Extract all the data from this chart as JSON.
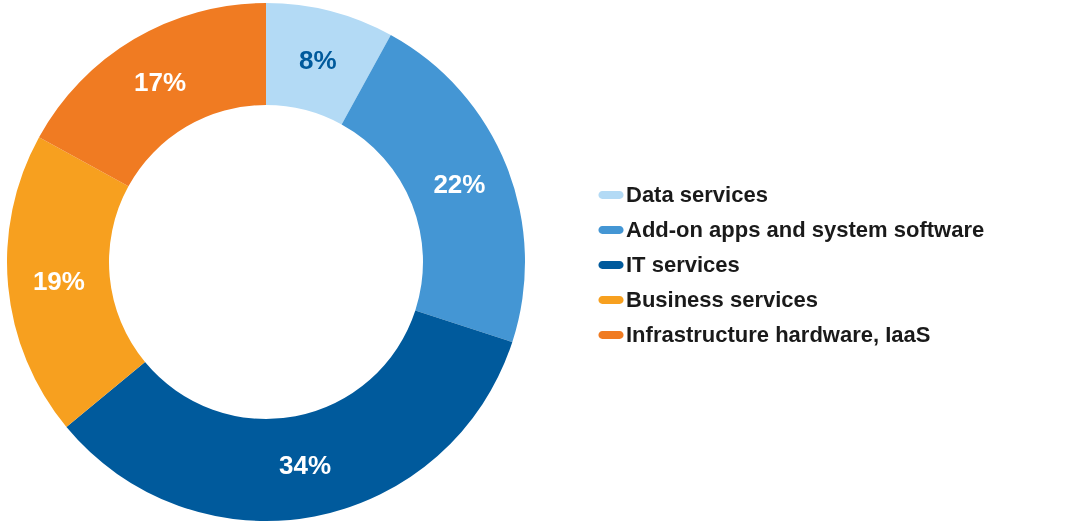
{
  "chart_data": {
    "type": "donut",
    "categories": [
      "Data services",
      "Add-on apps and system software",
      "IT services",
      "Business services",
      "Infrastructure hardware, IaaS"
    ],
    "values": [
      8,
      22,
      34,
      19,
      17
    ],
    "colors": [
      "#b3daf5",
      "#4496d4",
      "#005a9c",
      "#f7a01f",
      "#f07b22"
    ],
    "value_labels": [
      "8%",
      "22%",
      "34%",
      "19%",
      "17%"
    ],
    "legend": "right"
  }
}
